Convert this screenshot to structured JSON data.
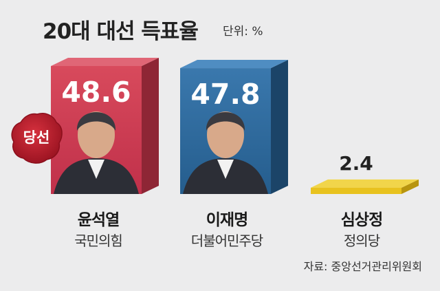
{
  "header": {
    "title": "20대 대선 득표율",
    "unit": "단위: %"
  },
  "badge": {
    "label": "당선"
  },
  "source": "자료: 중앙선거관리위원회",
  "colors": {
    "winner": "#c83a4c",
    "second": "#2f6a9c",
    "third": "#e8c21e",
    "background": "#ececed"
  },
  "chart_data": {
    "type": "bar",
    "categories": [
      "윤석열",
      "이재명",
      "심상정"
    ],
    "parties": [
      "국민의힘",
      "더불어민주당",
      "정의당"
    ],
    "values": [
      48.6,
      47.8,
      2.4
    ],
    "value_labels": [
      "48.6",
      "47.8",
      "2.4"
    ],
    "title": "20대 대선 득표율",
    "unit": "%",
    "ylim": [
      0,
      50
    ],
    "grid": false,
    "legend": "none"
  }
}
